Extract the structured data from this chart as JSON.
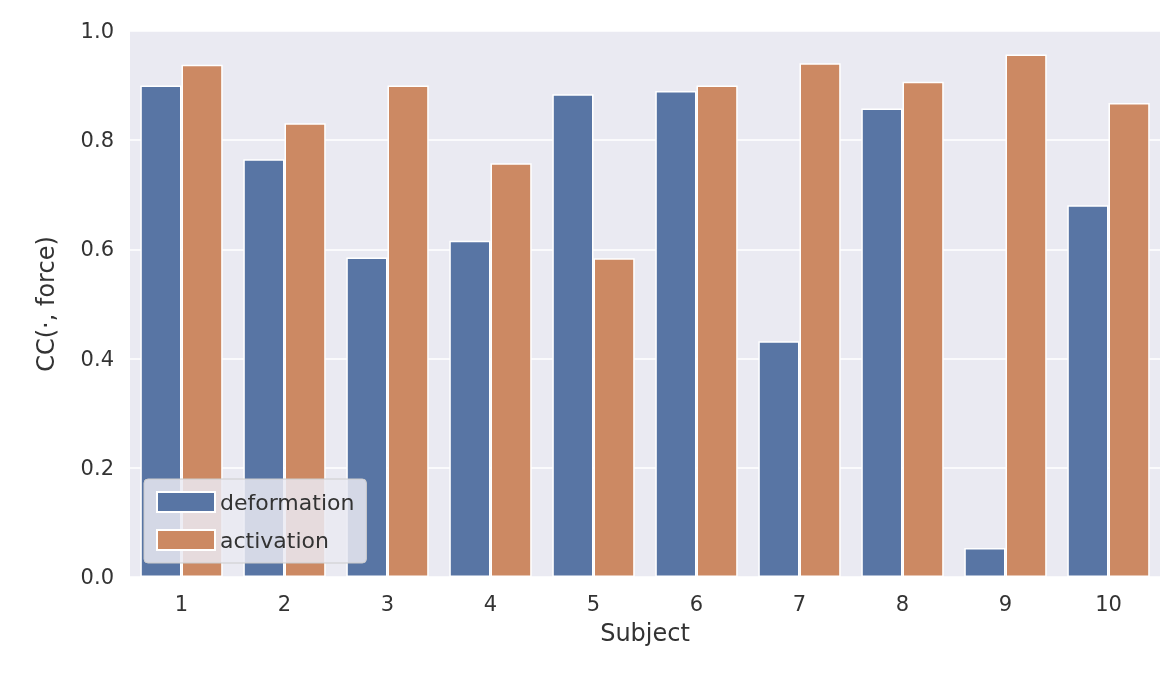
{
  "chart_data": {
    "type": "bar",
    "xlabel": "Subject",
    "ylabel": "CC(·, force)",
    "categories": [
      "1",
      "2",
      "3",
      "4",
      "5",
      "6",
      "7",
      "8",
      "9",
      "10"
    ],
    "series": [
      {
        "name": "deformation",
        "color": "#5875a4",
        "values": [
          0.9,
          0.765,
          0.585,
          0.616,
          0.884,
          0.89,
          0.432,
          0.858,
          0.053,
          0.681
        ]
      },
      {
        "name": "activation",
        "color": "#cc8963",
        "values": [
          0.938,
          0.831,
          0.9,
          0.758,
          0.584,
          0.9,
          0.941,
          0.907,
          0.957,
          0.868
        ]
      }
    ],
    "ylim": [
      0,
      1
    ],
    "yticks": [
      {
        "value": 0,
        "label": "0.0"
      },
      {
        "value": 0.2,
        "label": "0.2"
      },
      {
        "value": 0.4,
        "label": "0.4"
      },
      {
        "value": 0.6,
        "label": "0.6"
      },
      {
        "value": 0.8,
        "label": "0.8"
      },
      {
        "value": 1,
        "label": "1.0"
      }
    ],
    "grid": "y",
    "legend": "bottom left"
  }
}
